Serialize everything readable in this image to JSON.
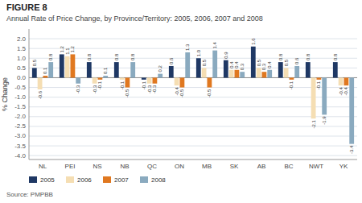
{
  "chart_data": {
    "type": "bar",
    "title": "FIGURE 8",
    "subtitle": "Annual Rate of Price Change, by Province/Territory: 2005, 2006, 2007 and 2008",
    "ylabel": "% Change",
    "annotations": [
      "Source: PMPBB"
    ],
    "categories": [
      "NL",
      "PEI",
      "NS",
      "NB",
      "QC",
      "ON",
      "MB",
      "SK",
      "AB",
      "BC",
      "NWT",
      "YK"
    ],
    "series": [
      {
        "name": "2005",
        "color": "#1f3864",
        "values": [
          0.5,
          1.2,
          0.8,
          0.8,
          -0.1,
          0.6,
          1.0,
          0.9,
          1.6,
          0.8,
          0.8,
          0.8
        ],
        "value_labels": [
          "0.5",
          "1.2",
          "0.8",
          "0.8",
          "-0.1",
          "0.6",
          "1.0",
          "0.9",
          "1.6",
          "0.8",
          "0.8",
          "0.8"
        ]
      },
      {
        "name": "2006",
        "color": "#f5deb3",
        "values": [
          -0.6,
          1.1,
          -0.3,
          -0.1,
          -0.3,
          -0.4,
          0.5,
          0.4,
          0.5,
          0.5,
          -2.1,
          -0.4
        ],
        "value_labels": [
          "-0.6",
          "1.1",
          "-0.3",
          "-0.1",
          "-0.3",
          "-0.4",
          "0.5",
          "0.4",
          "0.5",
          "0.5",
          "-2.1",
          "-0.4"
        ]
      },
      {
        "name": "2007",
        "color": "#e07820",
        "values": [
          0.1,
          1.2,
          -0.1,
          -0.5,
          -0.3,
          -0.5,
          -0.5,
          0.4,
          0.3,
          -0.1,
          -0.1,
          -0.4
        ],
        "value_labels": [
          "0.1",
          "1.2",
          "-0.1",
          "-0.5",
          "-0.3",
          "-0.5",
          "-0.5",
          "0.4",
          "0.3",
          "-0.1",
          "-0.1",
          "-0.4"
        ]
      },
      {
        "name": "2008",
        "color": "#8aaabf",
        "values": [
          0.8,
          -0.3,
          0.1,
          0.8,
          0.2,
          1.3,
          1.4,
          0.3,
          0.4,
          0.6,
          -1.9,
          -3.4
        ],
        "value_labels": [
          "0.8",
          "-0.3",
          "0.1",
          "0.8",
          "0.2",
          "1.3",
          "1.4",
          "0.3",
          "0.4",
          "0.6",
          "-1.9",
          "-3.4"
        ]
      }
    ],
    "ylim": [
      -4.2,
      2.5
    ],
    "yticks": [
      {
        "value": -4.0,
        "label": "-4.0"
      },
      -3.5,
      {
        "value": -3.0,
        "label": "-3.0"
      },
      -2.5,
      {
        "value": -2.0,
        "label": "-2.0"
      },
      -1.5,
      {
        "value": -1.0,
        "label": "-1.0"
      },
      -0.5,
      {
        "value": 0.0,
        "label": "0.0"
      },
      0.5,
      {
        "value": 1.0,
        "label": "1.0"
      },
      1.5,
      {
        "value": 2.0,
        "label": "2.0"
      }
    ],
    "grid": true,
    "data_labels": true,
    "legend": "lower left"
  }
}
